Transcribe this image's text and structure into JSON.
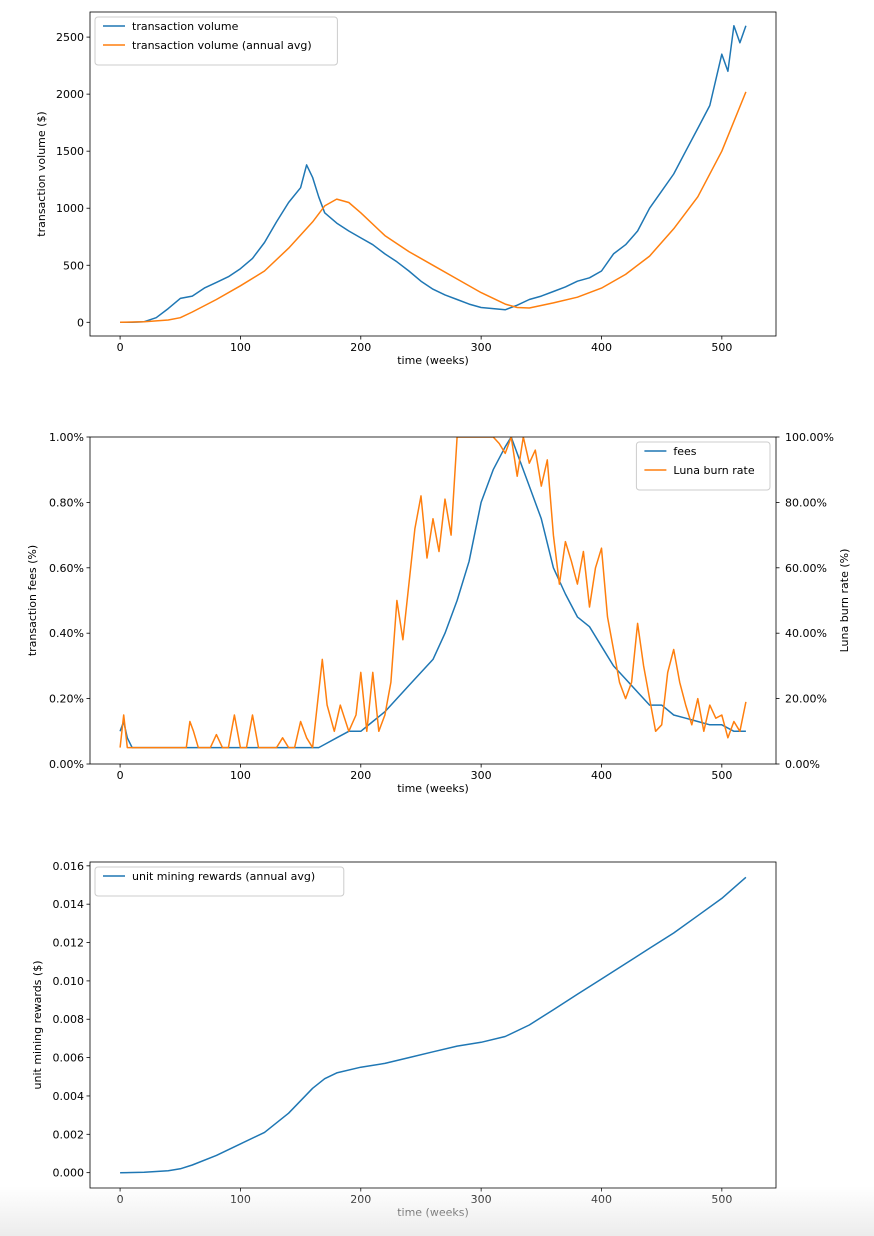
{
  "colors": {
    "blue": "#1f77b4",
    "orange": "#ff7f0e"
  },
  "chart_data": [
    {
      "type": "line",
      "xlabel": "time (weeks)",
      "ylabel": "transaction volume ($)",
      "xlim": [
        -25,
        545
      ],
      "ylim": [
        -120,
        2720
      ],
      "xticks": [
        0,
        100,
        200,
        300,
        400,
        500
      ],
      "yticks": [
        0,
        500,
        1000,
        1500,
        2000,
        2500
      ],
      "legend_position": "top-left",
      "series": [
        {
          "name": "transaction volume",
          "color": "#1f77b4",
          "x": [
            0,
            10,
            20,
            30,
            40,
            50,
            60,
            70,
            80,
            90,
            100,
            110,
            120,
            130,
            140,
            150,
            155,
            160,
            165,
            170,
            180,
            190,
            200,
            210,
            220,
            230,
            240,
            250,
            260,
            270,
            280,
            290,
            300,
            310,
            320,
            330,
            340,
            350,
            360,
            370,
            380,
            390,
            400,
            410,
            420,
            430,
            440,
            450,
            460,
            470,
            480,
            490,
            500,
            505,
            510,
            515,
            520
          ],
          "values": [
            0,
            0,
            5,
            40,
            120,
            210,
            230,
            300,
            350,
            400,
            470,
            560,
            700,
            880,
            1050,
            1180,
            1380,
            1270,
            1100,
            960,
            870,
            800,
            740,
            680,
            600,
            530,
            450,
            360,
            290,
            240,
            200,
            160,
            130,
            120,
            110,
            150,
            200,
            230,
            270,
            310,
            360,
            390,
            450,
            600,
            680,
            800,
            1000,
            1150,
            1300,
            1500,
            1700,
            1900,
            2350,
            2200,
            2600,
            2450,
            2600
          ]
        },
        {
          "name": "transaction volume (annual avg)",
          "color": "#ff7f0e",
          "x": [
            0,
            20,
            40,
            50,
            60,
            80,
            100,
            120,
            140,
            160,
            170,
            180,
            190,
            200,
            220,
            240,
            260,
            280,
            300,
            320,
            330,
            340,
            360,
            380,
            400,
            420,
            440,
            460,
            480,
            500,
            520
          ],
          "values": [
            0,
            5,
            20,
            40,
            90,
            200,
            320,
            450,
            650,
            880,
            1020,
            1080,
            1050,
            960,
            760,
            620,
            500,
            380,
            260,
            160,
            130,
            125,
            170,
            220,
            300,
            420,
            580,
            820,
            1100,
            1500,
            2020
          ]
        }
      ]
    },
    {
      "type": "line",
      "xlabel": "time (weeks)",
      "ylabel": "transaction fees (%)",
      "ylabel_right": "Luna burn rate (%)",
      "xlim": [
        -25,
        545
      ],
      "ylim": [
        0,
        1.0
      ],
      "ylim_right": [
        0,
        100
      ],
      "xticks": [
        0,
        100,
        200,
        300,
        400,
        500
      ],
      "yticks": [
        0,
        0.2,
        0.4,
        0.6,
        0.8,
        1.0
      ],
      "yticklabels": [
        "0.00%",
        "0.20%",
        "0.40%",
        "0.60%",
        "0.80%",
        "1.00%"
      ],
      "yticks_right": [
        0,
        20,
        40,
        60,
        80,
        100
      ],
      "yticklabels_right": [
        "0.00%",
        "20.00%",
        "40.00%",
        "60.00%",
        "80.00%",
        "100.00%"
      ],
      "legend_position": "top-right",
      "series": [
        {
          "name": "fees",
          "axis": "left",
          "color": "#1f77b4",
          "x": [
            0,
            3,
            6,
            10,
            50,
            100,
            150,
            165,
            170,
            180,
            190,
            200,
            210,
            220,
            230,
            240,
            250,
            260,
            270,
            280,
            290,
            300,
            310,
            320,
            325,
            330,
            340,
            350,
            360,
            370,
            380,
            390,
            400,
            410,
            420,
            430,
            440,
            450,
            460,
            470,
            480,
            490,
            500,
            510,
            520
          ],
          "values": [
            0.1,
            0.13,
            0.08,
            0.05,
            0.05,
            0.05,
            0.05,
            0.05,
            0.06,
            0.08,
            0.1,
            0.1,
            0.13,
            0.16,
            0.2,
            0.24,
            0.28,
            0.32,
            0.4,
            0.5,
            0.62,
            0.8,
            0.9,
            0.97,
            1.0,
            0.95,
            0.85,
            0.75,
            0.6,
            0.52,
            0.45,
            0.42,
            0.36,
            0.3,
            0.26,
            0.22,
            0.18,
            0.18,
            0.15,
            0.14,
            0.13,
            0.12,
            0.12,
            0.1,
            0.1
          ]
        },
        {
          "name": "Luna burn rate",
          "axis": "right",
          "color": "#ff7f0e",
          "x": [
            0,
            3,
            6,
            10,
            55,
            58,
            61,
            65,
            75,
            80,
            85,
            90,
            95,
            100,
            105,
            110,
            115,
            120,
            130,
            135,
            140,
            145,
            150,
            155,
            160,
            168,
            172,
            178,
            183,
            190,
            196,
            200,
            205,
            210,
            215,
            220,
            225,
            230,
            235,
            240,
            245,
            250,
            255,
            260,
            265,
            270,
            275,
            280,
            290,
            300,
            305,
            310,
            315,
            320,
            325,
            330,
            335,
            340,
            345,
            350,
            355,
            360,
            365,
            370,
            375,
            380,
            385,
            390,
            395,
            400,
            405,
            410,
            415,
            420,
            425,
            430,
            435,
            440,
            445,
            450,
            455,
            460,
            465,
            470,
            475,
            480,
            485,
            490,
            495,
            500,
            505,
            510,
            515,
            520
          ],
          "values": [
            5,
            15,
            5,
            5,
            5,
            13,
            10,
            5,
            5,
            9,
            5,
            5,
            15,
            5,
            5,
            15,
            5,
            5,
            5,
            8,
            5,
            5,
            13,
            8,
            5,
            32,
            18,
            10,
            18,
            10,
            15,
            28,
            10,
            28,
            10,
            15,
            25,
            50,
            38,
            55,
            72,
            82,
            63,
            75,
            65,
            81,
            70,
            100,
            100,
            100,
            100,
            100,
            98,
            95,
            100,
            88,
            100,
            92,
            96,
            85,
            93,
            70,
            55,
            68,
            62,
            55,
            65,
            48,
            60,
            66,
            45,
            35,
            25,
            20,
            25,
            43,
            30,
            20,
            10,
            12,
            28,
            35,
            25,
            18,
            12,
            20,
            10,
            18,
            14,
            15,
            8,
            13,
            10,
            19
          ]
        }
      ]
    },
    {
      "type": "line",
      "xlabel": "time (weeks)",
      "ylabel": "unit mining rewards ($)",
      "xlim": [
        -25,
        545
      ],
      "ylim": [
        -0.0008,
        0.0162
      ],
      "xticks": [
        0,
        100,
        200,
        300,
        400,
        500
      ],
      "yticks": [
        0,
        0.002,
        0.004,
        0.006,
        0.008,
        0.01,
        0.012,
        0.014,
        0.016
      ],
      "yticklabels": [
        "0.000",
        "0.002",
        "0.004",
        "0.006",
        "0.008",
        "0.010",
        "0.012",
        "0.014",
        "0.016"
      ],
      "legend_position": "top-left",
      "series": [
        {
          "name": "unit mining rewards (annual avg)",
          "color": "#1f77b4",
          "x": [
            0,
            20,
            40,
            50,
            60,
            80,
            100,
            120,
            140,
            160,
            170,
            180,
            200,
            220,
            240,
            260,
            280,
            300,
            320,
            340,
            360,
            380,
            400,
            420,
            440,
            460,
            480,
            500,
            520
          ],
          "values": [
            0,
            2e-05,
            0.0001,
            0.0002,
            0.0004,
            0.0009,
            0.0015,
            0.0021,
            0.0031,
            0.0044,
            0.0049,
            0.0052,
            0.0055,
            0.0057,
            0.006,
            0.0063,
            0.0066,
            0.0068,
            0.0071,
            0.0077,
            0.0085,
            0.0093,
            0.0101,
            0.0109,
            0.0117,
            0.0125,
            0.0134,
            0.0143,
            0.0154
          ]
        }
      ]
    }
  ]
}
